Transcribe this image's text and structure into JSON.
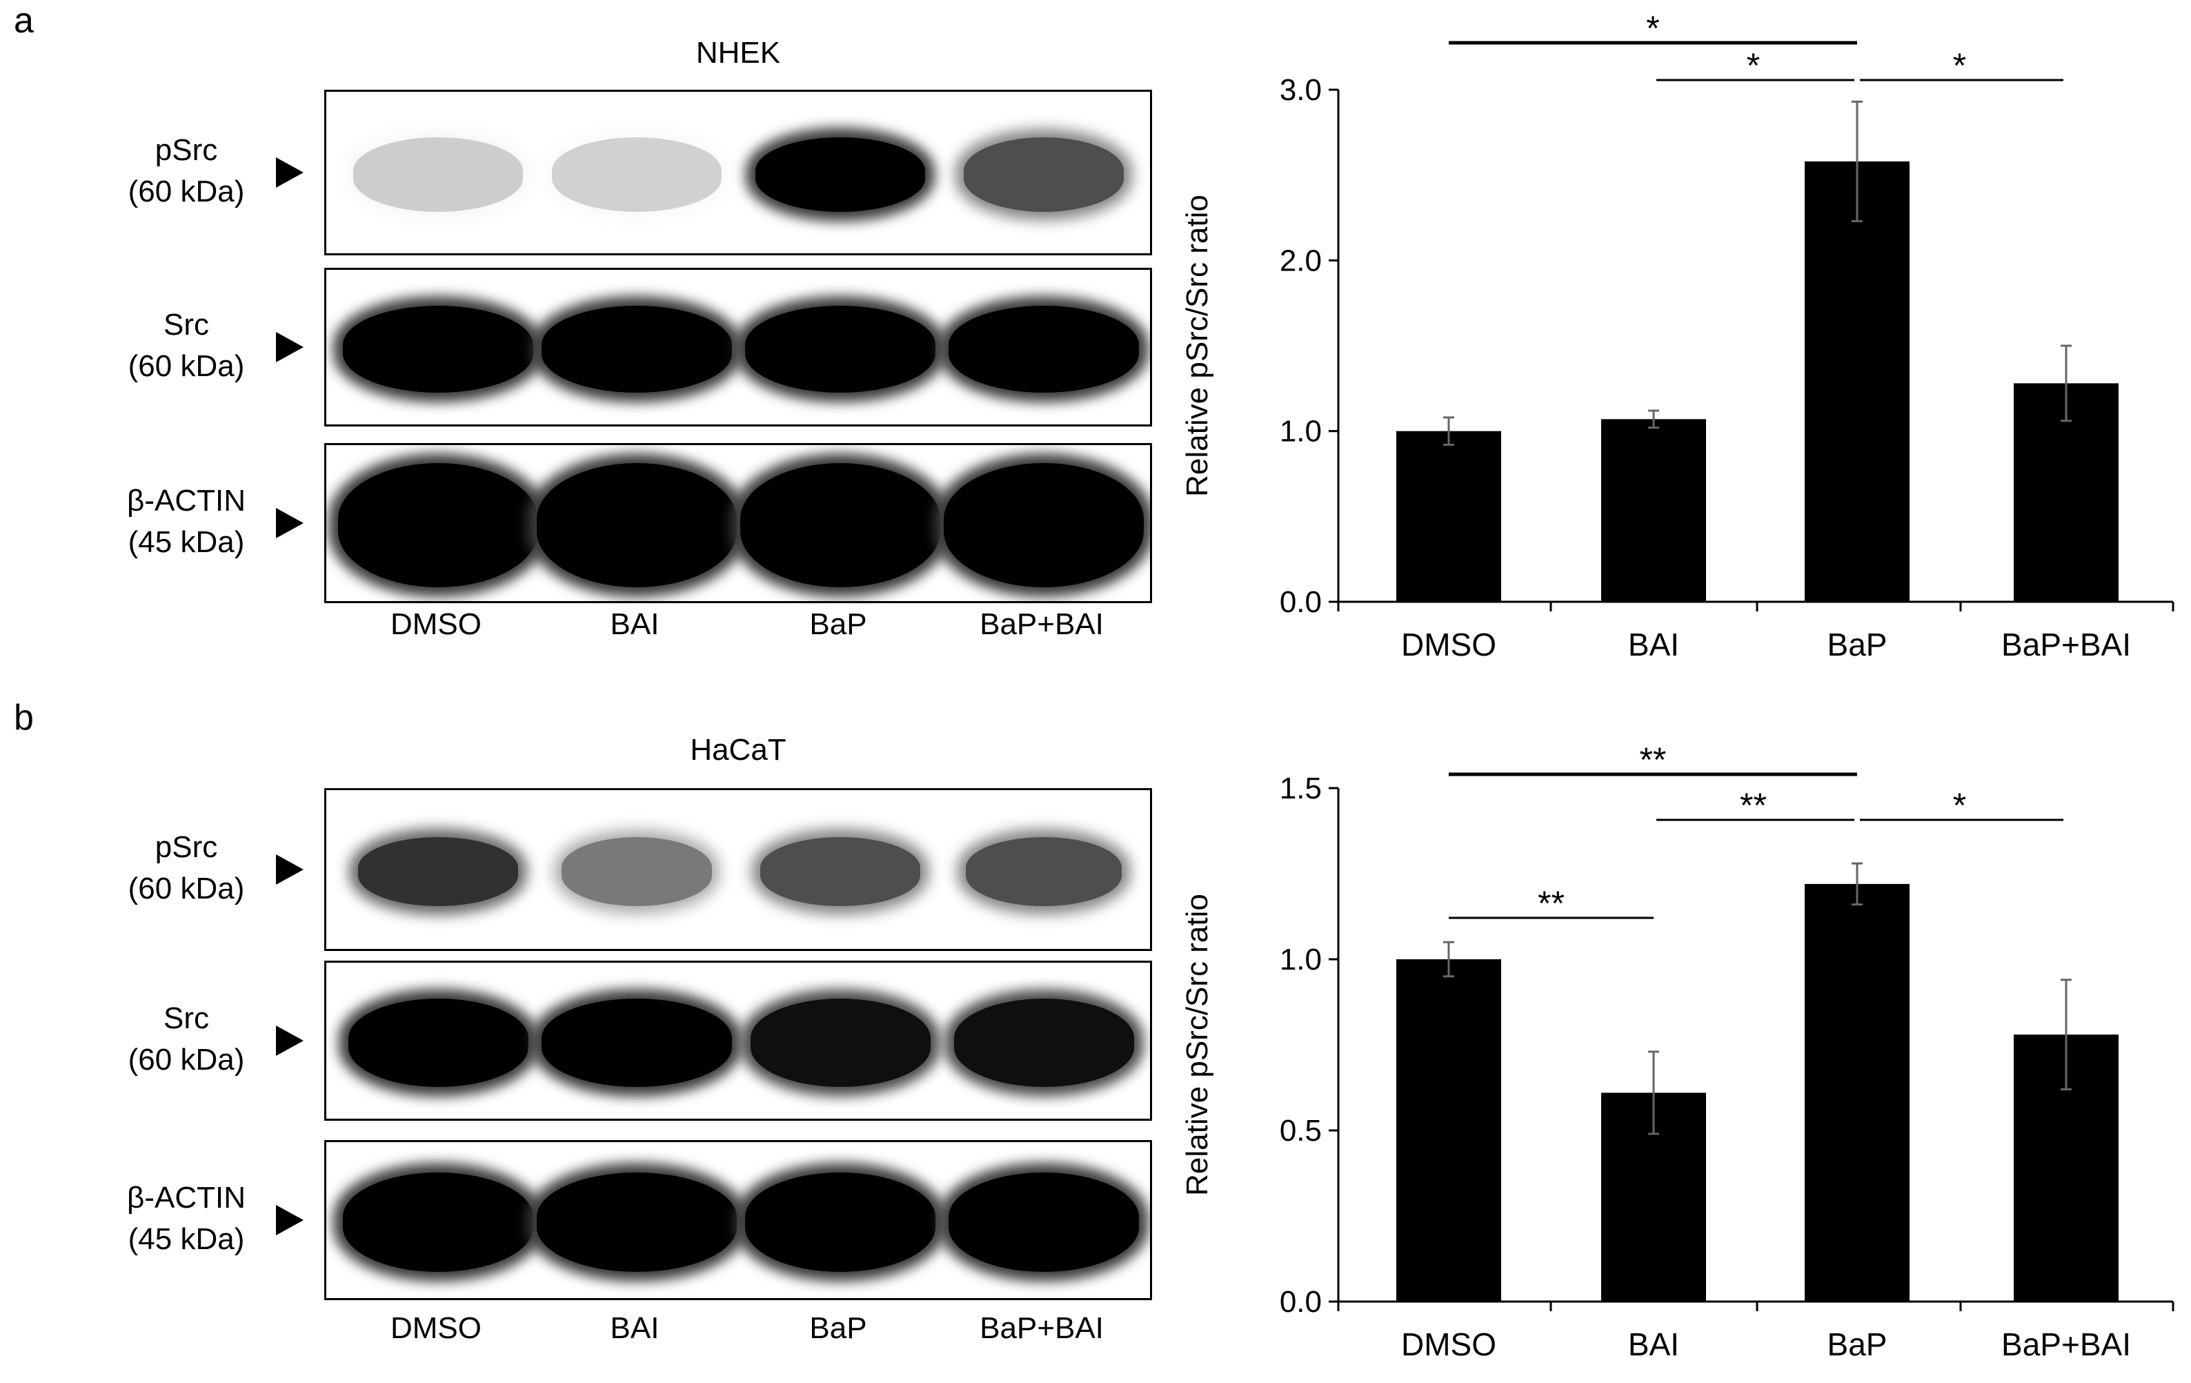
{
  "panels": [
    {
      "letter": "a",
      "cell_line": "NHEK",
      "blot_rows": [
        {
          "name": "pSrc",
          "size": "(60 kDa)",
          "intensity": [
            0.22,
            0.2,
            1.0,
            0.75
          ],
          "width": [
            0.85,
            0.85,
            0.85,
            0.8
          ],
          "height": 0.45
        },
        {
          "name": "Src",
          "size": "(60 kDa)",
          "intensity": [
            1.0,
            1.0,
            1.0,
            1.0
          ],
          "width": [
            0.95,
            0.95,
            0.95,
            0.95
          ],
          "height": 0.55
        },
        {
          "name": "β-ACTIN",
          "size": "(45 kDa)",
          "intensity": [
            1.0,
            1.0,
            1.0,
            1.0
          ],
          "width": [
            1.0,
            1.0,
            1.0,
            1.0
          ],
          "height": 0.78
        }
      ],
      "lanes": [
        "DMSO",
        "BAI",
        "BaP",
        "BaP+BAI"
      ],
      "chart_data": {
        "type": "bar",
        "categories": [
          "DMSO",
          "BAI",
          "BaP",
          "BaP+BAI"
        ],
        "values": [
          1.0,
          1.07,
          2.58,
          1.28
        ],
        "errors": [
          0.08,
          0.05,
          0.35,
          0.22
        ],
        "ylabel": "Relative pSrc/Src ratio",
        "ylim": [
          0,
          3.0
        ],
        "yticks": [
          "0.0",
          "1.0",
          "2.0",
          "3.0"
        ],
        "ytick_values": [
          0,
          1,
          2,
          3
        ],
        "significance": [
          {
            "from": 0,
            "to": 2,
            "label": "*",
            "level": 1
          },
          {
            "from": 1,
            "to": 2,
            "label": "*",
            "level": 0
          },
          {
            "from": 2,
            "to": 3,
            "label": "*",
            "level": 0
          }
        ]
      }
    },
    {
      "letter": "b",
      "cell_line": "HaCaT",
      "blot_rows": [
        {
          "name": "pSrc",
          "size": "(60 kDa)",
          "intensity": [
            0.85,
            0.6,
            0.75,
            0.75
          ],
          "width": [
            0.8,
            0.75,
            0.8,
            0.78
          ],
          "height": 0.42
        },
        {
          "name": "Src",
          "size": "(60 kDa)",
          "intensity": [
            1.0,
            1.0,
            0.95,
            0.95
          ],
          "width": [
            0.9,
            0.95,
            0.9,
            0.9
          ],
          "height": 0.55
        },
        {
          "name": "β-ACTIN",
          "size": "(45 kDa)",
          "intensity": [
            1.0,
            1.0,
            1.0,
            1.0
          ],
          "width": [
            0.95,
            1.0,
            0.95,
            0.95
          ],
          "height": 0.62
        }
      ],
      "lanes": [
        "DMSO",
        "BAI",
        "BaP",
        "BaP+BAI"
      ],
      "chart_data": {
        "type": "bar",
        "categories": [
          "DMSO",
          "BAI",
          "BaP",
          "BaP+BAI"
        ],
        "values": [
          1.0,
          0.61,
          1.22,
          0.78
        ],
        "errors": [
          0.05,
          0.12,
          0.06,
          0.16
        ],
        "ylabel": "Relative pSrc/Src ratio",
        "ylim": [
          0,
          1.5
        ],
        "yticks": [
          "0.0",
          "0.5",
          "1.0",
          "1.5"
        ],
        "ytick_values": [
          0,
          0.5,
          1.0,
          1.5
        ],
        "significance": [
          {
            "from": 0,
            "to": 2,
            "label": "**",
            "level": 1
          },
          {
            "from": 1,
            "to": 2,
            "label": "**",
            "level": 0
          },
          {
            "from": 2,
            "to": 3,
            "label": "*",
            "level": 0
          },
          {
            "from": 0,
            "to": 1,
            "label": "**",
            "level": -1
          }
        ]
      }
    }
  ]
}
